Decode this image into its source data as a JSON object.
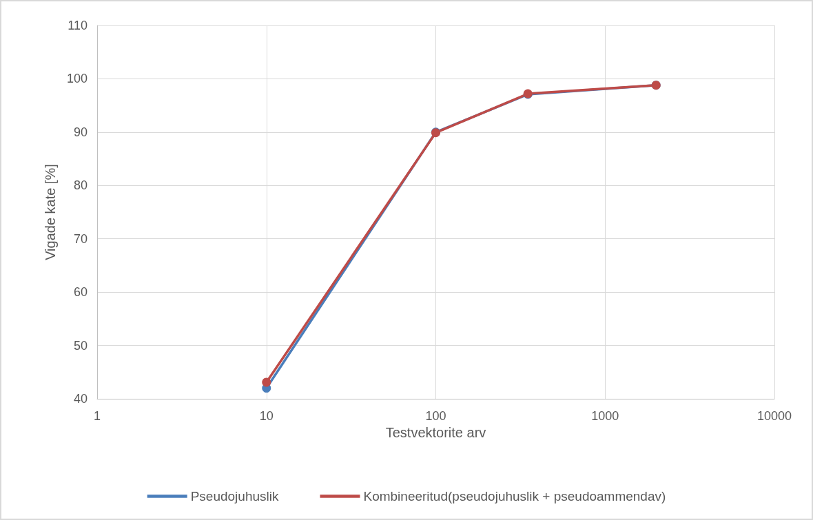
{
  "chart_data": {
    "type": "line",
    "xlabel": "Testvektorite arv",
    "ylabel": "Vigade kate [%]",
    "log": "x",
    "xlim": [
      1,
      10000
    ],
    "xticks": [
      1,
      10,
      100,
      1000,
      10000
    ],
    "ylim": [
      40,
      110
    ],
    "yticks": [
      40,
      50,
      60,
      70,
      80,
      90,
      100,
      110
    ],
    "grid": true,
    "legend": "bottom",
    "marker": "circle",
    "line_style": "solid",
    "series": [
      {
        "name": "Pseudojuhuslik",
        "color": "#4a7ebb",
        "x": [
          10,
          100,
          350,
          2000
        ],
        "values": [
          42,
          90,
          97.1,
          98.8
        ]
      },
      {
        "name": "Kombineeritud(pseudojuhuslik + pseudoammendav)",
        "color": "#be4b48",
        "x": [
          10,
          100,
          350,
          2000
        ],
        "values": [
          43.1,
          89.9,
          97.2,
          98.8
        ]
      }
    ]
  }
}
